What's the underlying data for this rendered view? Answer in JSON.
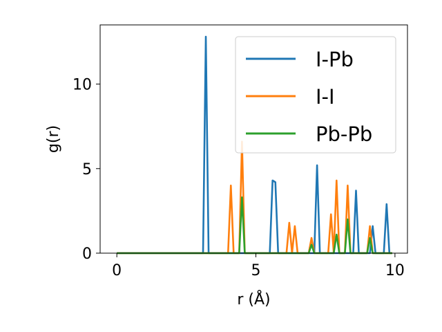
{
  "chart_data": {
    "type": "line",
    "xlabel": "r (Å)",
    "ylabel": "g(r)",
    "xlim": [
      -0.6,
      10.45
    ],
    "ylim": [
      0,
      13.5
    ],
    "xticks": [
      0,
      5,
      10
    ],
    "yticks": [
      0,
      5,
      10
    ],
    "grid": false,
    "legend_position": "top-right",
    "series": [
      {
        "name": "I-Pb",
        "color": "#1f77b4",
        "x": [
          0,
          3.0,
          3.1,
          3.2,
          3.3,
          3.4,
          5.5,
          5.6,
          5.7,
          5.8,
          7.1,
          7.2,
          7.3,
          8.5,
          8.6,
          8.7,
          9.1,
          9.2,
          9.3,
          9.6,
          9.7,
          9.8,
          9.9
        ],
        "y": [
          0,
          0,
          0,
          12.8,
          0,
          0,
          0,
          4.3,
          4.2,
          0,
          0,
          5.2,
          0,
          0,
          3.7,
          0,
          0,
          1.6,
          0,
          0,
          2.9,
          0,
          0
        ]
      },
      {
        "name": "I-I",
        "color": "#ff7f0e",
        "x": [
          0,
          4.0,
          4.1,
          4.2,
          4.4,
          4.5,
          4.6,
          6.1,
          6.2,
          6.3,
          6.4,
          6.5,
          6.6,
          6.9,
          7.0,
          7.1,
          7.6,
          7.7,
          7.8,
          7.9,
          8.0,
          8.2,
          8.3,
          8.4,
          9.0,
          9.1,
          9.2,
          9.9
        ],
        "y": [
          0,
          0,
          4.0,
          0,
          0,
          6.6,
          0,
          0,
          1.8,
          0,
          1.6,
          0,
          0,
          0,
          0.9,
          0,
          0,
          2.3,
          0,
          4.3,
          0,
          0,
          4.0,
          0,
          0,
          1.6,
          0,
          0
        ]
      },
      {
        "name": "Pb-Pb",
        "color": "#2ca02c",
        "x": [
          0,
          4.4,
          4.5,
          4.6,
          6.9,
          7.0,
          7.1,
          7.8,
          7.9,
          8.0,
          8.2,
          8.3,
          8.4,
          9.0,
          9.1,
          9.2,
          9.9
        ],
        "y": [
          0,
          0,
          3.3,
          0,
          0,
          0.5,
          0,
          0,
          1.1,
          0,
          0,
          2.0,
          0,
          0,
          0.9,
          0,
          0
        ]
      }
    ]
  }
}
